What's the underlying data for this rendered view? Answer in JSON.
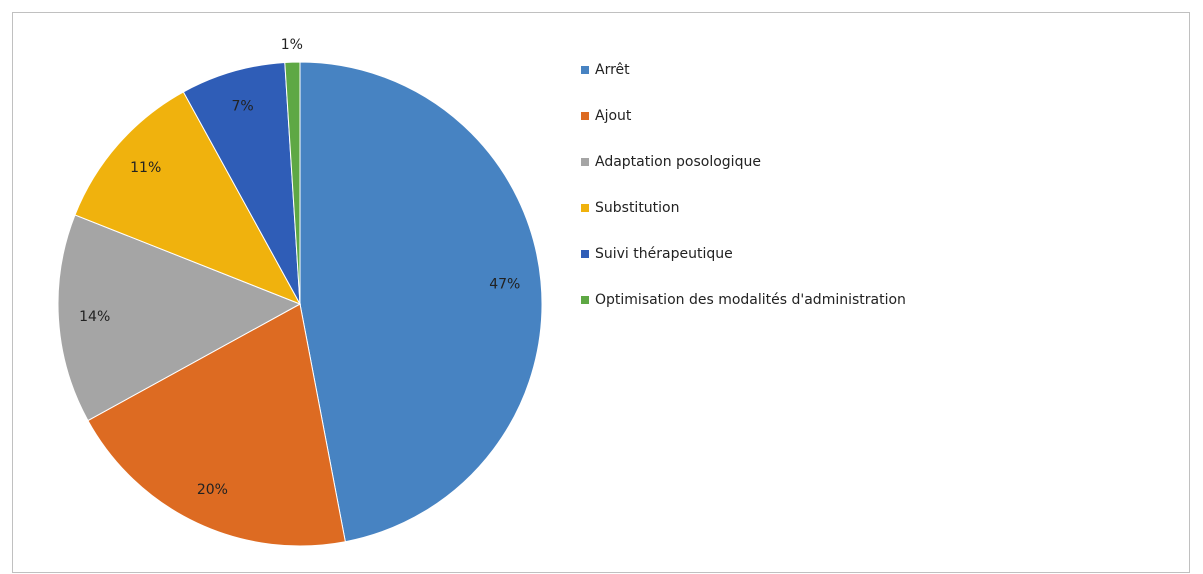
{
  "chart_data": {
    "type": "pie",
    "categories": [
      "Arrêt",
      "Ajout",
      "Adaptation posologique",
      "Substitution",
      "Suivi thérapeutique",
      "Optimisation des modalités d'administration"
    ],
    "values": [
      47,
      20,
      14,
      11,
      7,
      1
    ],
    "value_labels": [
      "47%",
      "20%",
      "14%",
      "11%",
      "7%",
      "1%"
    ],
    "colors": [
      "#4783c2",
      "#dd6b22",
      "#a5a5a5",
      "#f0b20d",
      "#2f5db7",
      "#5ea844"
    ],
    "legend": "right"
  }
}
